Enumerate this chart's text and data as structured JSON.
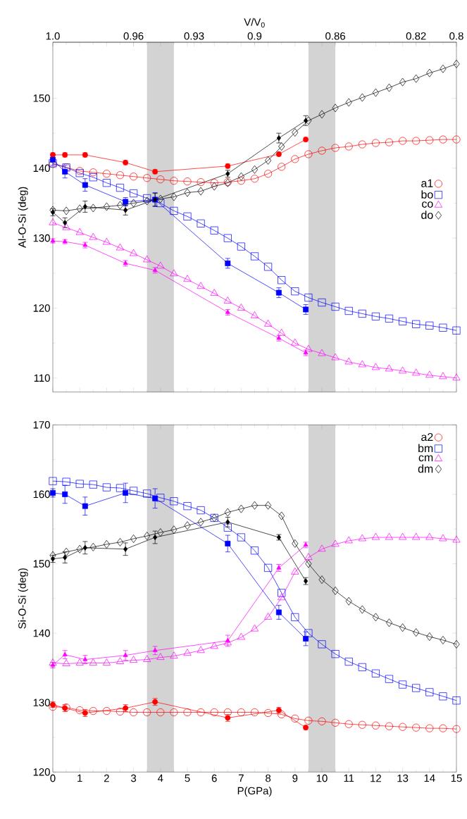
{
  "chart_data": [
    {
      "type": "line",
      "ylabel": "Al-O-Si (deg)",
      "x2label": "V/V$_{0}$",
      "xlim": [
        0,
        15
      ],
      "xticks": [
        0,
        1,
        2,
        3,
        4,
        5,
        6,
        7,
        8,
        9,
        10,
        11,
        12,
        13,
        14,
        15
      ],
      "ylim": [
        108,
        158
      ],
      "yticks": [
        110,
        120,
        130,
        140,
        150
      ],
      "x2lim": [
        1,
        0.8
      ],
      "x2ticks": [
        {
          "value": 1,
          "label": "1.0"
        },
        0.96,
        0.93,
        0.9,
        0.86,
        0.82,
        0.8
      ],
      "tick_labels": "y",
      "legend": "right",
      "bands": [
        {
          "axis": "x",
          "from": 3.5,
          "to": 4.5,
          "color": "#d3d3d3"
        },
        {
          "axis": "x",
          "from": 9.5,
          "to": 10.5,
          "color": "#d3d3d3"
        }
      ],
      "x": [
        0,
        0.5,
        1,
        1.5,
        2,
        2.5,
        3,
        3.5,
        4,
        4.5,
        5,
        5.5,
        6,
        6.5,
        7,
        7.5,
        8,
        8.5,
        9,
        9.5,
        10,
        10.5,
        11,
        11.5,
        12,
        12.5,
        13,
        13.5,
        14,
        14.5,
        15
      ],
      "series": [
        {
          "name": "a1",
          "color": "#ff0000",
          "marker": "circle",
          "values": [
            140.6,
            140.1,
            139.6,
            139.4,
            139.2,
            139.0,
            138.8,
            138.6,
            138.4,
            138.2,
            138.1,
            138.0,
            137.9,
            138.0,
            138.2,
            138.5,
            139.2,
            140.2,
            141.3,
            142.0,
            142.5,
            142.9,
            143.1,
            143.4,
            143.6,
            143.7,
            143.9,
            143.9,
            144.0,
            144.1,
            144.1
          ]
        },
        {
          "name": "bo",
          "color": "#0000ff",
          "marker": "square",
          "values": [
            140.7,
            140.1,
            139.3,
            138.7,
            137.9,
            137.2,
            136.4,
            135.7,
            135.0,
            133.9,
            133.1,
            132.1,
            131.1,
            130.0,
            128.8,
            127.4,
            125.9,
            124.0,
            122.4,
            121.5,
            120.8,
            120.2,
            119.6,
            119.2,
            118.8,
            118.5,
            118.1,
            117.7,
            117.5,
            117.2,
            116.8
          ]
        },
        {
          "name": "co",
          "color": "#ff00ff",
          "marker": "triangle",
          "values": [
            132.2,
            131.5,
            130.8,
            130.1,
            129.4,
            128.6,
            127.8,
            126.9,
            126.0,
            124.9,
            124.1,
            123.1,
            122.1,
            121.0,
            120.0,
            118.9,
            117.7,
            116.4,
            115.0,
            114.1,
            113.5,
            112.9,
            112.3,
            111.9,
            111.5,
            111.3,
            111.0,
            110.7,
            110.4,
            110.2,
            110.0
          ]
        },
        {
          "name": "do",
          "color": "#000000",
          "marker": "diamond",
          "values": [
            134.0,
            133.9,
            134.2,
            134.3,
            134.5,
            134.7,
            135.0,
            135.3,
            135.6,
            135.9,
            136.5,
            136.7,
            137.4,
            137.9,
            138.8,
            139.8,
            141.1,
            143.1,
            145.1,
            146.8,
            147.7,
            148.6,
            149.4,
            150.1,
            150.8,
            151.5,
            152.3,
            152.8,
            153.6,
            154.2,
            154.9
          ]
        },
        {
          "color": "#ff0000",
          "marker": "circle",
          "x": [
            0,
            0.45,
            1.2,
            2.7,
            3.8,
            6.5,
            8.4,
            9.4
          ],
          "values": [
            141.9,
            141.9,
            141.9,
            140.8,
            139.5,
            140.3,
            142.0,
            144.1
          ],
          "errors": [
            0.3,
            0.3,
            0.3,
            0.3,
            0.3,
            0.3,
            0.3,
            0.3
          ]
        },
        {
          "color": "#0000ff",
          "marker": "square",
          "x": [
            0,
            0.45,
            1.2,
            2.7,
            3.8,
            6.5,
            8.4,
            9.4
          ],
          "values": [
            141.2,
            139.5,
            137.6,
            135.2,
            135.5,
            126.4,
            122.2,
            119.8
          ],
          "errors": [
            0.8,
            0.9,
            0.9,
            0.6,
            1.0,
            0.7,
            0.7,
            0.7
          ]
        },
        {
          "color": "#ff00ff",
          "marker": "triangle",
          "x": [
            0,
            0.45,
            1.2,
            2.7,
            3.8,
            6.5,
            8.4,
            9.4
          ],
          "values": [
            129.6,
            129.5,
            129.0,
            126.4,
            125.4,
            119.4,
            115.7,
            113.6
          ],
          "errors": [
            0.3,
            0.3,
            0.4,
            0.4,
            0.4,
            0.4,
            0.4,
            0.4
          ]
        },
        {
          "color": "#000000",
          "marker": "diamond",
          "x": [
            0,
            0.45,
            1.2,
            2.7,
            3.8,
            6.5,
            8.4,
            9.4
          ],
          "values": [
            133.7,
            132.2,
            134.5,
            134.0,
            135.5,
            139.2,
            144.3,
            146.8
          ],
          "errors": [
            0.5,
            0.7,
            0.8,
            0.7,
            0.9,
            0.5,
            0.7,
            0.7
          ]
        }
      ]
    },
    {
      "type": "line",
      "ylabel": "Si-O-Si (deg)",
      "xlabel": "P(GPa)",
      "xlim": [
        0,
        15
      ],
      "xticks": [
        0,
        1,
        2,
        3,
        4,
        5,
        6,
        7,
        8,
        9,
        10,
        11,
        12,
        13,
        14,
        15
      ],
      "ylim": [
        120,
        170
      ],
      "yticks": [
        120,
        130,
        140,
        150,
        160,
        170
      ],
      "legend": "top right",
      "bands": [
        {
          "axis": "x",
          "from": 3.5,
          "to": 4.5,
          "color": "#d3d3d3"
        },
        {
          "axis": "x",
          "from": 9.5,
          "to": 10.5,
          "color": "#d3d3d3"
        }
      ],
      "x": [
        0,
        0.5,
        1,
        1.5,
        2,
        2.5,
        3,
        3.5,
        4,
        4.5,
        5,
        5.5,
        6,
        6.5,
        7,
        7.5,
        8,
        8.5,
        9,
        9.5,
        10,
        10.5,
        11,
        11.5,
        12,
        12.5,
        13,
        13.5,
        14,
        14.5,
        15
      ],
      "series": [
        {
          "name": "a2",
          "color": "#ff0000",
          "marker": "circle",
          "values": [
            129.4,
            129.3,
            128.9,
            128.8,
            128.8,
            128.7,
            128.6,
            128.6,
            128.6,
            128.6,
            128.6,
            128.6,
            128.6,
            128.6,
            128.6,
            128.6,
            128.5,
            128.3,
            127.7,
            127.4,
            127.3,
            127.1,
            126.9,
            126.8,
            126.7,
            126.6,
            126.5,
            126.4,
            126.3,
            126.3,
            126.2
          ]
        },
        {
          "name": "bm",
          "color": "#0000ff",
          "marker": "square",
          "values": [
            161.9,
            161.8,
            161.5,
            161.4,
            161.0,
            160.9,
            160.5,
            160.1,
            159.5,
            159.0,
            158.3,
            157.7,
            156.6,
            155.2,
            153.8,
            151.9,
            149.4,
            145.8,
            142.3,
            140.0,
            138.4,
            137.0,
            135.9,
            135.1,
            134.2,
            133.4,
            132.6,
            132.1,
            131.5,
            130.9,
            130.3
          ]
        },
        {
          "name": "cm",
          "color": "#ff00ff",
          "marker": "triangle",
          "values": [
            135.7,
            135.6,
            135.7,
            135.7,
            135.7,
            135.9,
            136.1,
            136.2,
            136.5,
            136.7,
            137.1,
            137.5,
            138.1,
            138.6,
            139.4,
            140.6,
            142.3,
            145.1,
            148.8,
            150.9,
            152.1,
            152.8,
            153.3,
            153.6,
            153.8,
            153.8,
            153.8,
            153.8,
            153.8,
            153.6,
            153.4
          ]
        },
        {
          "name": "dm",
          "color": "#000000",
          "marker": "diamond",
          "values": [
            151.2,
            151.7,
            152.1,
            152.4,
            152.8,
            153.1,
            153.6,
            154.0,
            154.5,
            154.9,
            155.5,
            156.0,
            156.6,
            157.4,
            157.9,
            158.4,
            158.4,
            156.9,
            152.9,
            150.0,
            147.7,
            146.1,
            144.6,
            143.4,
            142.3,
            141.5,
            140.8,
            140.1,
            139.5,
            139.0,
            138.4
          ]
        },
        {
          "color": "#ff0000",
          "marker": "circle",
          "x": [
            0,
            0.45,
            1.2,
            2.7,
            3.8,
            6.5,
            8.4,
            9.4
          ],
          "values": [
            129.7,
            129.2,
            128.5,
            129.2,
            130.1,
            127.8,
            128.9,
            126.4
          ],
          "errors": [
            0.4,
            0.5,
            0.5,
            0.5,
            0.5,
            0.5,
            0.4,
            0.3
          ]
        },
        {
          "color": "#0000ff",
          "marker": "square",
          "x": [
            0,
            0.45,
            1.2,
            2.7,
            3.8,
            6.5,
            8.4,
            9.4
          ],
          "values": [
            160.2,
            160.0,
            158.3,
            160.2,
            159.4,
            152.9,
            143.0,
            139.2
          ],
          "errors": [
            0.6,
            1.3,
            1.3,
            1.4,
            1.4,
            1.2,
            1.0,
            1.0
          ]
        },
        {
          "color": "#ff00ff",
          "marker": "triangle",
          "x": [
            0,
            0.45,
            1.2,
            2.7,
            3.8,
            6.5,
            8.4,
            9.4
          ],
          "values": [
            135.4,
            136.9,
            136.2,
            136.8,
            137.5,
            138.9,
            149.4,
            152.7
          ],
          "errors": [
            0.4,
            0.6,
            0.6,
            0.7,
            0.6,
            0.8,
            0.5,
            0.4
          ]
        },
        {
          "color": "#000000",
          "marker": "diamond",
          "x": [
            0,
            0.45,
            1.2,
            2.7,
            3.8,
            6.5,
            8.4,
            9.4
          ],
          "values": [
            150.7,
            150.9,
            152.3,
            152.1,
            153.8,
            156.0,
            153.8,
            147.5
          ],
          "errors": [
            0.5,
            0.8,
            0.9,
            0.9,
            0.9,
            0.7,
            0.4,
            0.5
          ]
        }
      ]
    }
  ]
}
